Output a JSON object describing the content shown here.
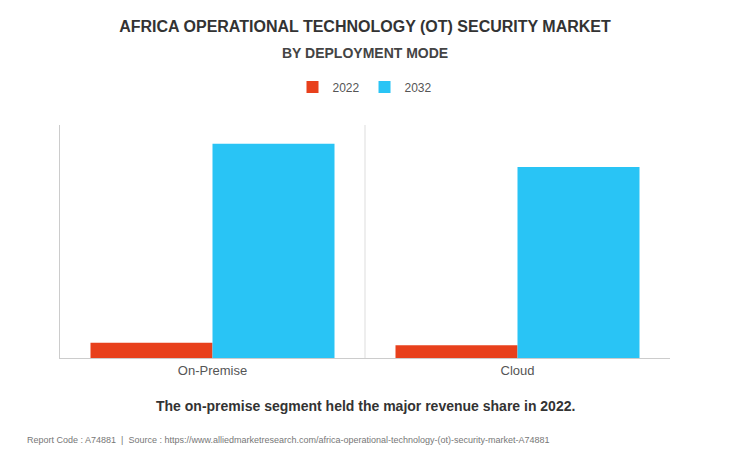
{
  "chart_data": {
    "type": "bar",
    "title": "AFRICA OPERATIONAL TECHNOLOGY (OT) SECURITY MARKET",
    "subtitle": "BY DEPLOYMENT MODE",
    "categories": [
      "On-Premise",
      "Cloud"
    ],
    "series": [
      {
        "name": "2022",
        "color": "#e8401c",
        "values": [
          0.065,
          0.055
        ]
      },
      {
        "name": "2032",
        "color": "#29c4f5",
        "values": [
          0.92,
          0.82
        ]
      }
    ],
    "ylim": [
      0,
      1.0
    ],
    "grid": false,
    "legend": "top",
    "tick_labels": "x",
    "annotations": [
      "The on-premise segment held the major revenue share in 2022.",
      "Report Code : A74881  |  Source : https://www.alliedmarketresearch.com/africa-operational-technology-(ot)-security-market-A74881"
    ]
  }
}
